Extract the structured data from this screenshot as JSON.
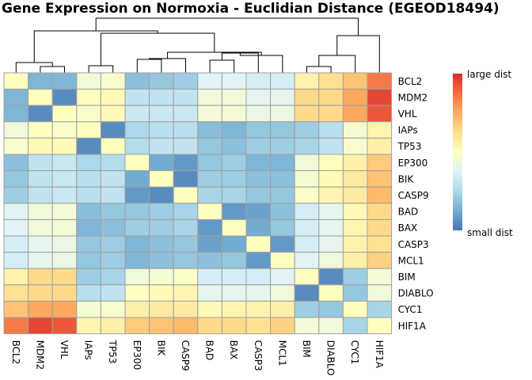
{
  "chart_data": {
    "type": "heatmap",
    "title": "Gene Expression on Normoxia - Euclidian Distance  (EGEOD18494)",
    "row_labels": [
      "BCL2",
      "MDM2",
      "VHL",
      "IAPs",
      "TP53",
      "EP300",
      "BIK",
      "CASP9",
      "BAD",
      "BAX",
      "CASP3",
      "MCL1",
      "BIM",
      "DIABLO",
      "CYC1",
      "HIF1A"
    ],
    "col_labels": [
      "BCL2",
      "MDM2",
      "VHL",
      "IAPs",
      "TP53",
      "EP300",
      "BIK",
      "CASP9",
      "BAD",
      "BAX",
      "CASP3",
      "MCL1",
      "BIM",
      "DIABLO",
      "CYC1",
      "HIF1A"
    ],
    "legend": {
      "high_label": "large dist",
      "low_label": "small dist"
    },
    "color_scale": [
      "#4575b4",
      "#74add1",
      "#abd9e9",
      "#e0f3f8",
      "#ffffbf",
      "#fee090",
      "#fdae61",
      "#f46d43",
      "#d73027"
    ],
    "value_range": [
      0,
      1
    ],
    "values": [
      [
        0.5,
        0.15,
        0.15,
        0.44,
        0.47,
        0.18,
        0.2,
        0.22,
        0.38,
        0.38,
        0.35,
        0.35,
        0.55,
        0.62,
        0.7,
        0.85
      ],
      [
        0.15,
        0.5,
        0.05,
        0.5,
        0.52,
        0.3,
        0.3,
        0.3,
        0.44,
        0.44,
        0.4,
        0.4,
        0.64,
        0.64,
        0.76,
        0.95
      ],
      [
        0.15,
        0.05,
        0.5,
        0.48,
        0.52,
        0.32,
        0.32,
        0.32,
        0.45,
        0.45,
        0.42,
        0.42,
        0.64,
        0.64,
        0.76,
        0.92
      ],
      [
        0.44,
        0.5,
        0.48,
        0.5,
        0.05,
        0.25,
        0.28,
        0.28,
        0.17,
        0.15,
        0.2,
        0.2,
        0.22,
        0.28,
        0.46,
        0.54
      ],
      [
        0.47,
        0.52,
        0.52,
        0.05,
        0.5,
        0.27,
        0.3,
        0.3,
        0.2,
        0.18,
        0.22,
        0.22,
        0.24,
        0.3,
        0.47,
        0.56
      ],
      [
        0.18,
        0.3,
        0.32,
        0.25,
        0.27,
        0.5,
        0.12,
        0.08,
        0.2,
        0.22,
        0.15,
        0.15,
        0.44,
        0.5,
        0.56,
        0.68
      ],
      [
        0.2,
        0.3,
        0.32,
        0.28,
        0.3,
        0.12,
        0.5,
        0.05,
        0.22,
        0.22,
        0.18,
        0.18,
        0.46,
        0.52,
        0.58,
        0.7
      ],
      [
        0.22,
        0.3,
        0.32,
        0.28,
        0.3,
        0.08,
        0.05,
        0.5,
        0.24,
        0.24,
        0.2,
        0.2,
        0.48,
        0.54,
        0.58,
        0.72
      ],
      [
        0.38,
        0.44,
        0.45,
        0.17,
        0.2,
        0.2,
        0.22,
        0.24,
        0.5,
        0.08,
        0.1,
        0.18,
        0.35,
        0.4,
        0.52,
        0.64
      ],
      [
        0.38,
        0.44,
        0.45,
        0.15,
        0.18,
        0.22,
        0.22,
        0.24,
        0.08,
        0.5,
        0.12,
        0.2,
        0.35,
        0.4,
        0.54,
        0.64
      ],
      [
        0.35,
        0.4,
        0.42,
        0.2,
        0.22,
        0.15,
        0.18,
        0.2,
        0.1,
        0.12,
        0.5,
        0.08,
        0.35,
        0.4,
        0.55,
        0.62
      ],
      [
        0.35,
        0.4,
        0.42,
        0.2,
        0.22,
        0.15,
        0.18,
        0.2,
        0.18,
        0.2,
        0.08,
        0.5,
        0.38,
        0.44,
        0.56,
        0.66
      ],
      [
        0.55,
        0.64,
        0.64,
        0.22,
        0.24,
        0.44,
        0.46,
        0.48,
        0.35,
        0.35,
        0.35,
        0.38,
        0.5,
        0.05,
        0.22,
        0.45
      ],
      [
        0.62,
        0.64,
        0.64,
        0.28,
        0.3,
        0.5,
        0.52,
        0.54,
        0.4,
        0.4,
        0.4,
        0.44,
        0.05,
        0.5,
        0.2,
        0.44
      ],
      [
        0.7,
        0.76,
        0.76,
        0.46,
        0.47,
        0.56,
        0.58,
        0.58,
        0.52,
        0.54,
        0.55,
        0.56,
        0.22,
        0.2,
        0.5,
        0.24
      ],
      [
        0.85,
        0.95,
        0.92,
        0.54,
        0.56,
        0.68,
        0.7,
        0.72,
        0.64,
        0.64,
        0.62,
        0.66,
        0.45,
        0.44,
        0.24,
        0.5
      ]
    ]
  }
}
